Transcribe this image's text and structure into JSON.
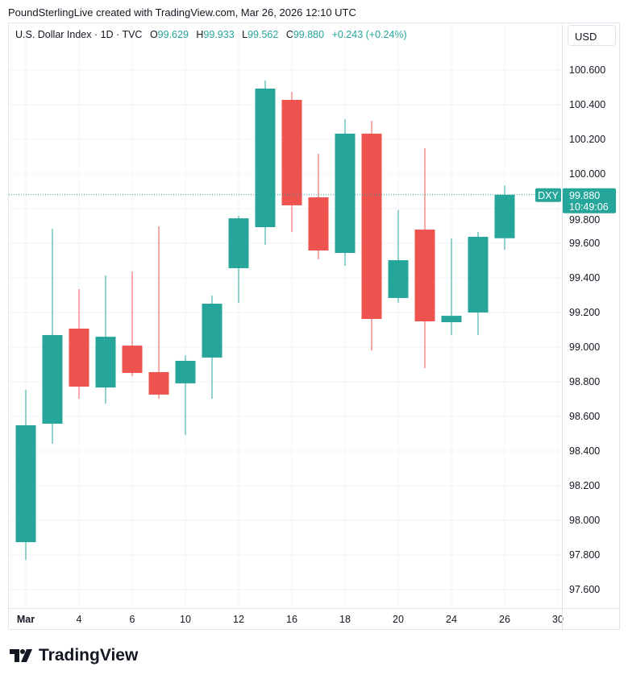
{
  "credit": "PoundSterlingLive created with TradingView.com, Mar 26, 2026 12:10 UTC",
  "legend": {
    "title": "U.S. Dollar Index · 1D · TVC",
    "o_label": "O",
    "o": "99.629",
    "h_label": "H",
    "h": "99.933",
    "l_label": "L",
    "l": "99.562",
    "c_label": "C",
    "c": "99.880",
    "change": "+0.243 (+0.24%)"
  },
  "currency_button": "USD",
  "last_price_tag": {
    "symbol": "DXY",
    "price": "99.880",
    "countdown": "10:49:06"
  },
  "logo_text": "TradingView",
  "colors": {
    "up": "#26a69a",
    "down": "#ef5350",
    "grid": "#f0f3fa"
  },
  "chart_data": {
    "type": "candlestick",
    "ylim": [
      97.55,
      100.7
    ],
    "y_ticks": [
      "100.600",
      "100.400",
      "100.200",
      "100.000",
      "99.800",
      "99.600",
      "99.400",
      "99.200",
      "99.000",
      "98.800",
      "98.600",
      "98.400",
      "98.200",
      "98.000",
      "97.800",
      "97.600"
    ],
    "x_tick_labels": [
      "Mar",
      "4",
      "6",
      "10",
      "12",
      "16",
      "18",
      "20",
      "24",
      "26",
      "30"
    ],
    "grid": true,
    "candles": [
      {
        "date": "Mar 2",
        "o": 97.874,
        "h": 98.753,
        "l": 97.772,
        "c": 98.549
      },
      {
        "date": "Mar 3",
        "o": 98.558,
        "h": 99.684,
        "l": 98.442,
        "c": 99.07
      },
      {
        "date": "Mar 4",
        "o": 99.107,
        "h": 99.335,
        "l": 98.702,
        "c": 98.772
      },
      {
        "date": "Mar 5",
        "o": 98.767,
        "h": 99.414,
        "l": 98.674,
        "c": 99.06
      },
      {
        "date": "Mar 6",
        "o": 99.009,
        "h": 99.437,
        "l": 98.833,
        "c": 98.851
      },
      {
        "date": "Mar 9",
        "o": 98.856,
        "h": 99.698,
        "l": 98.702,
        "c": 98.726
      },
      {
        "date": "Mar 10",
        "o": 98.791,
        "h": 98.953,
        "l": 98.493,
        "c": 98.921
      },
      {
        "date": "Mar 11",
        "o": 98.94,
        "h": 99.298,
        "l": 98.702,
        "c": 99.251
      },
      {
        "date": "Mar 12",
        "o": 99.456,
        "h": 99.758,
        "l": 99.256,
        "c": 99.744
      },
      {
        "date": "Mar 13",
        "o": 99.693,
        "h": 100.54,
        "l": 99.591,
        "c": 100.493
      },
      {
        "date": "Mar 16",
        "o": 100.428,
        "h": 100.474,
        "l": 99.665,
        "c": 99.819
      },
      {
        "date": "Mar 17",
        "o": 99.865,
        "h": 100.116,
        "l": 99.507,
        "c": 99.558
      },
      {
        "date": "Mar 18",
        "o": 99.544,
        "h": 100.316,
        "l": 99.47,
        "c": 100.233
      },
      {
        "date": "Mar 19",
        "o": 100.233,
        "h": 100.307,
        "l": 98.981,
        "c": 99.163
      },
      {
        "date": "Mar 20",
        "o": 99.284,
        "h": 99.791,
        "l": 99.256,
        "c": 99.502
      },
      {
        "date": "Mar 23",
        "o": 99.679,
        "h": 100.149,
        "l": 98.879,
        "c": 99.149
      },
      {
        "date": "Mar 24",
        "o": 99.144,
        "h": 99.628,
        "l": 99.07,
        "c": 99.181
      },
      {
        "date": "Mar 25",
        "o": 99.2,
        "h": 99.665,
        "l": 99.07,
        "c": 99.637
      },
      {
        "date": "Mar 26",
        "o": 99.629,
        "h": 99.933,
        "l": 99.562,
        "c": 99.88
      }
    ],
    "last_price": 99.88
  }
}
